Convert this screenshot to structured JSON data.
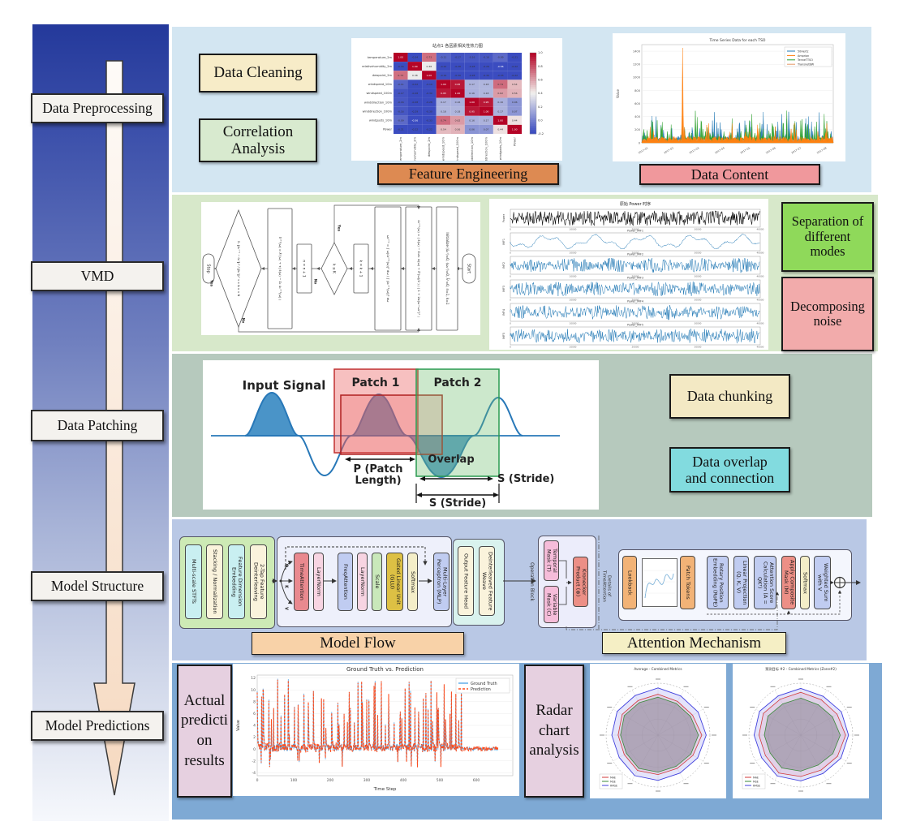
{
  "stages": [
    {
      "label": "Data Preprocessing"
    },
    {
      "label": "VMD"
    },
    {
      "label": "Data Patching"
    },
    {
      "label": "Model Structure"
    },
    {
      "label": "Model Predictions"
    }
  ],
  "rows": {
    "preprocessing": {
      "data_cleaning": "Data Cleaning",
      "correlation_analysis": "Correlation\nAnalysis",
      "feature_engineering": "Feature Engineering",
      "data_content": "Data Content"
    },
    "vmd": {
      "separation": "Separation of\ndifferent\nmodes",
      "decomposing": "Decomposing\nnoise",
      "flowchart": {
        "start": "Start",
        "stop": "Stop",
        "yes": "Yes",
        "no": "No",
        "steps": [
          "Initialize (ûₖ¹)=0, (ωₖ¹)=0, λ̂¹=0, n=1, k=1",
          "ûₖⁿ⁺¹(ω) = ( x̂(ω) − Σᵢ≠ₖ ûᵢ(ω) + λ̂ⁿ(ω)/2 ) / ( 1 + 2α(ω−ωₖⁿ)² )",
          "ωₖⁿ⁺¹ = ∫ ω|ûₖⁿ⁺¹(ω)|² dω ∕ ∫ |ûₖⁿ⁺¹(ω)|² dω",
          "k = k + 1",
          "k ≤ K",
          "n = n + 1",
          "λ̂ⁿ⁺¹(ω) = λ̂ⁿ(ω) + τ( x̂(ω) − Σₖ ûₖⁿ⁺¹(ω) )",
          "Σₖ ‖ûₖⁿ⁺¹ − ûₖⁿ‖₂² ∕ ‖ûₖⁿ‖₂² < ε  &  n < N"
        ]
      }
    },
    "patching": {
      "input_signal": "Input Signal",
      "patch1": "Patch 1",
      "patch2": "Patch 2",
      "p_label1": "P (Patch",
      "p_label2": "Length)",
      "overlap": "Overlap",
      "s_label1": "S (Stride)",
      "s_label2": "S (Stride)",
      "data_chunking": "Data chunking",
      "data_overlap": "Data overlap\nand connection"
    },
    "model": {
      "model_flow": "Model Flow",
      "attention_mechanism": "Attention Mechanism",
      "group_a": [
        {
          "label": "Multi-scale STFTs",
          "color": "cyan"
        },
        {
          "label": "Stacking / Normalization",
          "color": "cream"
        },
        {
          "label": "Feature Dimension Embedding",
          "color": "cyan"
        },
        {
          "label": "2-Tap Feature Deinterleaving",
          "color": "cream"
        }
      ],
      "qkv": [
        "Q",
        "K",
        "V"
      ],
      "group_b": [
        {
          "label": "TimeAttention",
          "color": "red"
        },
        {
          "label": "LayerNorm",
          "color": "pink"
        },
        {
          "label": "FreqAttention",
          "color": "blue"
        },
        {
          "label": "LayerNorm",
          "color": "pink"
        },
        {
          "label": "Scale",
          "color": "green"
        },
        {
          "label": "Gated Linear Unit (GLU)",
          "color": "gold"
        },
        {
          "label": "Softmax",
          "color": "softcream"
        },
        {
          "label": "Multi-Layer Perceptron (MLP)",
          "color": "blue"
        }
      ],
      "group_c": [
        {
          "label": "Output Feature Head",
          "color": "cream"
        },
        {
          "label": "Deinterleaved Feature Weave",
          "color": "cream"
        }
      ],
      "operation_block": {
        "label": "Operation Block",
        "boxes": [
          {
            "label": "Temporal Mask (T)",
            "color": "maskpink"
          },
          {
            "label": "Variable Mask (C)",
            "color": "maskpink"
          },
          {
            "label": "Kronecker Product (⊗)",
            "color": "salmon"
          }
        ]
      },
      "details_label": "Details of TimeAttention",
      "attention_blocks": [
        {
          "label": "Lookback",
          "color": "orange"
        },
        {
          "label": "Patch Tokens",
          "color": "orange"
        },
        {
          "label": "Rotary Position Embedding (RoPE)",
          "color": "blue"
        },
        {
          "label": "Linear Projection (Q, K, V)",
          "color": "blue"
        },
        {
          "label": "Attention Score Calculation (A = QKᵀ)",
          "color": "blue"
        },
        {
          "label": "Apply Composite Mask (M)",
          "color": "salmon"
        },
        {
          "label": "Softmax",
          "color": "softcream"
        },
        {
          "label": "Weighted Sum with V",
          "color": "blue"
        }
      ]
    },
    "predictions": {
      "actual_label": "Actual\npredicti\non\nresults",
      "radar_label": "Radar\nchart\nanalysis"
    }
  },
  "chart_data": [
    {
      "id": "correlation_heatmap",
      "type": "heatmap",
      "title": "站点1 各因素相关性热力图",
      "labels": [
        "temperature_2m",
        "relativehumidity_2m",
        "dewpoint_2m",
        "windspeed_10m",
        "windspeed_100m",
        "winddirection_10m",
        "winddirection_100m",
        "windgusts_10m",
        "Power"
      ],
      "matrix": [
        [
          1.0,
          -0.34,
          0.73,
          -0.11,
          -0.17,
          -0.16,
          -0.16,
          -0.09,
          -0.21
        ],
        [
          -0.34,
          1.0,
          0.38,
          -0.22,
          -0.28,
          -0.28,
          -0.29,
          -0.56,
          -0.22
        ],
        [
          0.73,
          0.38,
          1.0,
          -0.19,
          -0.3,
          -0.28,
          -0.3,
          -0.33,
          -0.22
        ],
        [
          -0.11,
          -0.22,
          -0.19,
          1.0,
          0.95,
          0.17,
          0.18,
          0.74,
          0.54
        ],
        [
          -0.17,
          -0.28,
          -0.3,
          0.95,
          1.0,
          0.16,
          0.18,
          0.62,
          0.56
        ],
        [
          -0.16,
          -0.28,
          -0.28,
          0.17,
          0.16,
          1.0,
          0.95,
          0.16,
          0.06
        ],
        [
          -0.16,
          -0.29,
          -0.3,
          0.18,
          0.18,
          0.95,
          1.0,
          0.17,
          0.07
        ],
        [
          -0.09,
          -0.56,
          -0.33,
          0.74,
          0.62,
          0.16,
          0.17,
          1.0,
          0.44
        ],
        [
          -0.21,
          -0.22,
          -0.22,
          0.54,
          0.56,
          0.06,
          0.07,
          0.44,
          1.0
        ]
      ],
      "colorbar_ticks": [
        1.0,
        0.8,
        0.6,
        0.4,
        0.2,
        0.0,
        -0.2
      ]
    },
    {
      "id": "tso_timeseries",
      "type": "line",
      "title": "Time Series Data for each TSO",
      "ylabel": "Value",
      "legend": [
        "50Hertz",
        "Amprion",
        "TenneTTSO",
        "TransnetBW"
      ],
      "colors": [
        "#1f77b4",
        "#ff7f0e",
        "#2ca02c",
        "#e59866"
      ],
      "x_ticks": [
        "2017-01",
        "2017-02",
        "2017-03",
        "2017-04",
        "2017-05",
        "2017-06",
        "2017-07",
        "2017-08"
      ],
      "y_ticks": [
        0,
        200,
        400,
        600,
        800,
        1000,
        1200,
        1400
      ],
      "ylim": [
        0,
        1500
      ],
      "peak": {
        "series": "Amprion",
        "value": 1450,
        "near": "2017-02"
      }
    },
    {
      "id": "vmd_decomposition",
      "type": "line-panels",
      "suptitle": "原始 Power 时序",
      "panels": [
        {
          "title": "",
          "ylabel": "Power"
        },
        {
          "title": "Power_IMF1",
          "ylabel": "IMF1"
        },
        {
          "title": "Power_IMF2",
          "ylabel": "IMF2"
        },
        {
          "title": "Power_IMF3",
          "ylabel": "IMF3"
        },
        {
          "title": "Power_IMF4",
          "ylabel": "IMF4"
        },
        {
          "title": "Power_IMF5",
          "ylabel": "IMF5"
        }
      ],
      "x_ticks": [
        0,
        10000,
        20000,
        30000,
        40000
      ]
    },
    {
      "id": "prediction_vs_truth",
      "type": "line",
      "title": "Ground Truth vs. Prediction",
      "xlabel": "Time Step",
      "ylabel": "Value",
      "legend": [
        "Ground Truth",
        "Prediction"
      ],
      "colors": [
        "#56a8e8",
        "#ff4d1d"
      ],
      "x_ticks": [
        0,
        100,
        200,
        300,
        400,
        500,
        600
      ],
      "y_ticks": [
        -4,
        -2,
        0,
        2,
        4,
        6,
        8,
        10,
        12
      ],
      "ylim": [
        -4.5,
        12.5
      ],
      "spike_max": 12,
      "flat_after": 560
    },
    {
      "id": "radar_average",
      "type": "radar",
      "title": "Average - Combined Metrics",
      "legend": [
        "MAE",
        "MSE",
        "RMSE"
      ],
      "colors": [
        "#d23a3a",
        "#3a8a3a",
        "#4040dd"
      ],
      "series": [
        [
          0.84,
          0.8,
          0.82,
          0.9,
          0.83,
          0.79,
          0.81,
          0.84,
          0.8,
          0.82,
          0.85,
          0.82
        ],
        [
          0.78,
          0.75,
          0.77,
          0.83,
          0.78,
          0.74,
          0.76,
          0.79,
          0.75,
          0.77,
          0.8,
          0.77
        ],
        [
          0.97,
          0.93,
          0.95,
          0.99,
          0.94,
          0.9,
          0.93,
          0.96,
          0.92,
          0.95,
          0.97,
          0.94
        ]
      ]
    },
    {
      "id": "radar_zone2",
      "type": "radar",
      "title": "预测目标 #2 - Combined Metrics (Zone#2)",
      "legend": [
        "MAE",
        "MSE",
        "RMSE"
      ],
      "colors": [
        "#d23a3a",
        "#3a8a3a",
        "#4040dd"
      ],
      "series": [
        [
          0.88,
          0.84,
          0.86,
          0.92,
          0.87,
          0.83,
          0.85,
          0.9,
          0.84,
          0.86,
          0.89,
          0.85
        ],
        [
          0.76,
          0.72,
          0.75,
          0.81,
          0.76,
          0.71,
          0.74,
          0.78,
          0.73,
          0.75,
          0.78,
          0.74
        ],
        [
          0.96,
          0.92,
          0.96,
          0.98,
          0.95,
          0.91,
          0.94,
          0.97,
          0.93,
          0.96,
          0.98,
          0.93
        ]
      ]
    }
  ]
}
